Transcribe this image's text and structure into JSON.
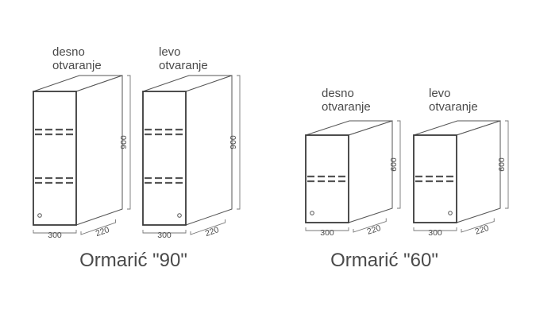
{
  "cabinets": [
    {
      "opening": "desno\notvaranje",
      "width": "300",
      "depth": "220",
      "height": "900",
      "hinge": "right"
    },
    {
      "opening": "levo\notvaranje",
      "width": "300",
      "depth": "220",
      "height": "900",
      "hinge": "left"
    },
    {
      "opening": "desno\notvaranje",
      "width": "300",
      "depth": "220",
      "height": "600",
      "hinge": "right"
    },
    {
      "opening": "levo\notvaranje",
      "width": "300",
      "depth": "220",
      "height": "600",
      "hinge": "left"
    }
  ],
  "groups": [
    {
      "title": "Ormarić \"90\""
    },
    {
      "title": "Ormarić \"60\""
    }
  ]
}
